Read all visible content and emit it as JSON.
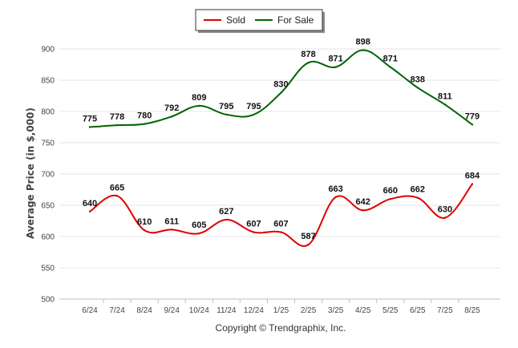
{
  "chart_data": {
    "type": "line",
    "categories": [
      "6/24",
      "7/24",
      "8/24",
      "9/24",
      "10/24",
      "11/24",
      "12/24",
      "1/25",
      "2/25",
      "3/25",
      "4/25",
      "5/25",
      "6/25",
      "7/25",
      "8/25"
    ],
    "series": [
      {
        "name": "Sold",
        "color": "#dd0000",
        "values": [
          640,
          665,
          610,
          611,
          605,
          627,
          607,
          607,
          587,
          663,
          642,
          660,
          662,
          630,
          684
        ]
      },
      {
        "name": "For Sale",
        "color": "#006400",
        "values": [
          775,
          778,
          780,
          792,
          809,
          795,
          795,
          830,
          878,
          871,
          898,
          871,
          838,
          811,
          779
        ]
      }
    ],
    "ylabel": "Average Price (in $,000)",
    "ylim": [
      500,
      900
    ],
    "yticks": [
      500,
      550,
      600,
      650,
      700,
      750,
      800,
      850,
      900
    ],
    "grid": true,
    "legend_position": "top-center",
    "data_labels": true
  },
  "footer": {
    "copyright": "Copyright © Trendgraphix, Inc."
  }
}
